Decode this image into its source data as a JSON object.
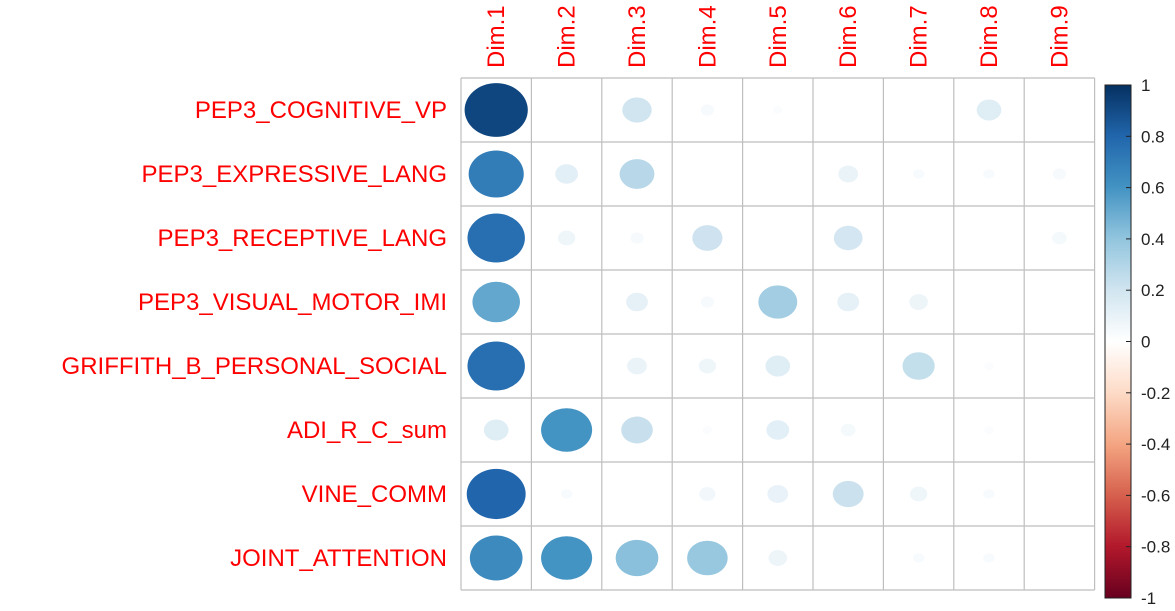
{
  "chart_data": {
    "type": "heatmap",
    "subtype": "correlation-circles",
    "rows": [
      "PEP3_COGNITIVE_VP",
      "PEP3_EXPRESSIVE_LANG",
      "PEP3_RECEPTIVE_LANG",
      "PEP3_VISUAL_MOTOR_IMI",
      "GRIFFITH_B_PERSONAL_SOCIAL",
      "ADI_R_C_sum",
      "VINE_COMM",
      "JOINT_ATTENTION"
    ],
    "columns": [
      "Dim.1",
      "Dim.2",
      "Dim.3",
      "Dim.4",
      "Dim.5",
      "Dim.6",
      "Dim.7",
      "Dim.8",
      "Dim.9"
    ],
    "values": [
      [
        0.92,
        0.0,
        0.2,
        0.04,
        0.02,
        0.0,
        0.0,
        0.14,
        0.0
      ],
      [
        0.7,
        0.12,
        0.28,
        0.0,
        0.0,
        0.09,
        0.03,
        0.03,
        0.04
      ],
      [
        0.76,
        0.07,
        0.04,
        0.21,
        0.0,
        0.19,
        0.0,
        0.0,
        0.05
      ],
      [
        0.52,
        0.0,
        0.11,
        0.04,
        0.35,
        0.11,
        0.08,
        0.0,
        0.0
      ],
      [
        0.76,
        0.0,
        0.09,
        0.07,
        0.14,
        0.0,
        0.24,
        0.02,
        0.0
      ],
      [
        0.14,
        0.6,
        0.23,
        0.02,
        0.12,
        0.05,
        0.0,
        0.02,
        0.0
      ],
      [
        0.8,
        0.03,
        0.0,
        0.06,
        0.1,
        0.22,
        0.07,
        0.03,
        0.0
      ],
      [
        0.64,
        0.6,
        0.42,
        0.38,
        0.08,
        0.0,
        0.03,
        0.03,
        0.0
      ]
    ],
    "color_scale": {
      "min": -1,
      "max": 1,
      "ticks": [
        1,
        0.8,
        0.6,
        0.4,
        0.2,
        0,
        -0.2,
        -0.4,
        -0.6,
        -0.8,
        -1
      ],
      "tick_labels": [
        "1",
        "0.8",
        "0.6",
        "0.4",
        "0.2",
        "0",
        "-0.2",
        "-0.4",
        "-0.6",
        "-0.8",
        "-1"
      ],
      "colors": [
        "#67001F",
        "#B2182B",
        "#D6604D",
        "#F4A582",
        "#FDDBC7",
        "#FFFFFF",
        "#D1E5F0",
        "#92C5DE",
        "#4393C3",
        "#2166AC",
        "#053061"
      ]
    },
    "label_color": "#FF0000",
    "grid_color": "#BEBEBE",
    "legend_placement": "right",
    "grid": true
  }
}
